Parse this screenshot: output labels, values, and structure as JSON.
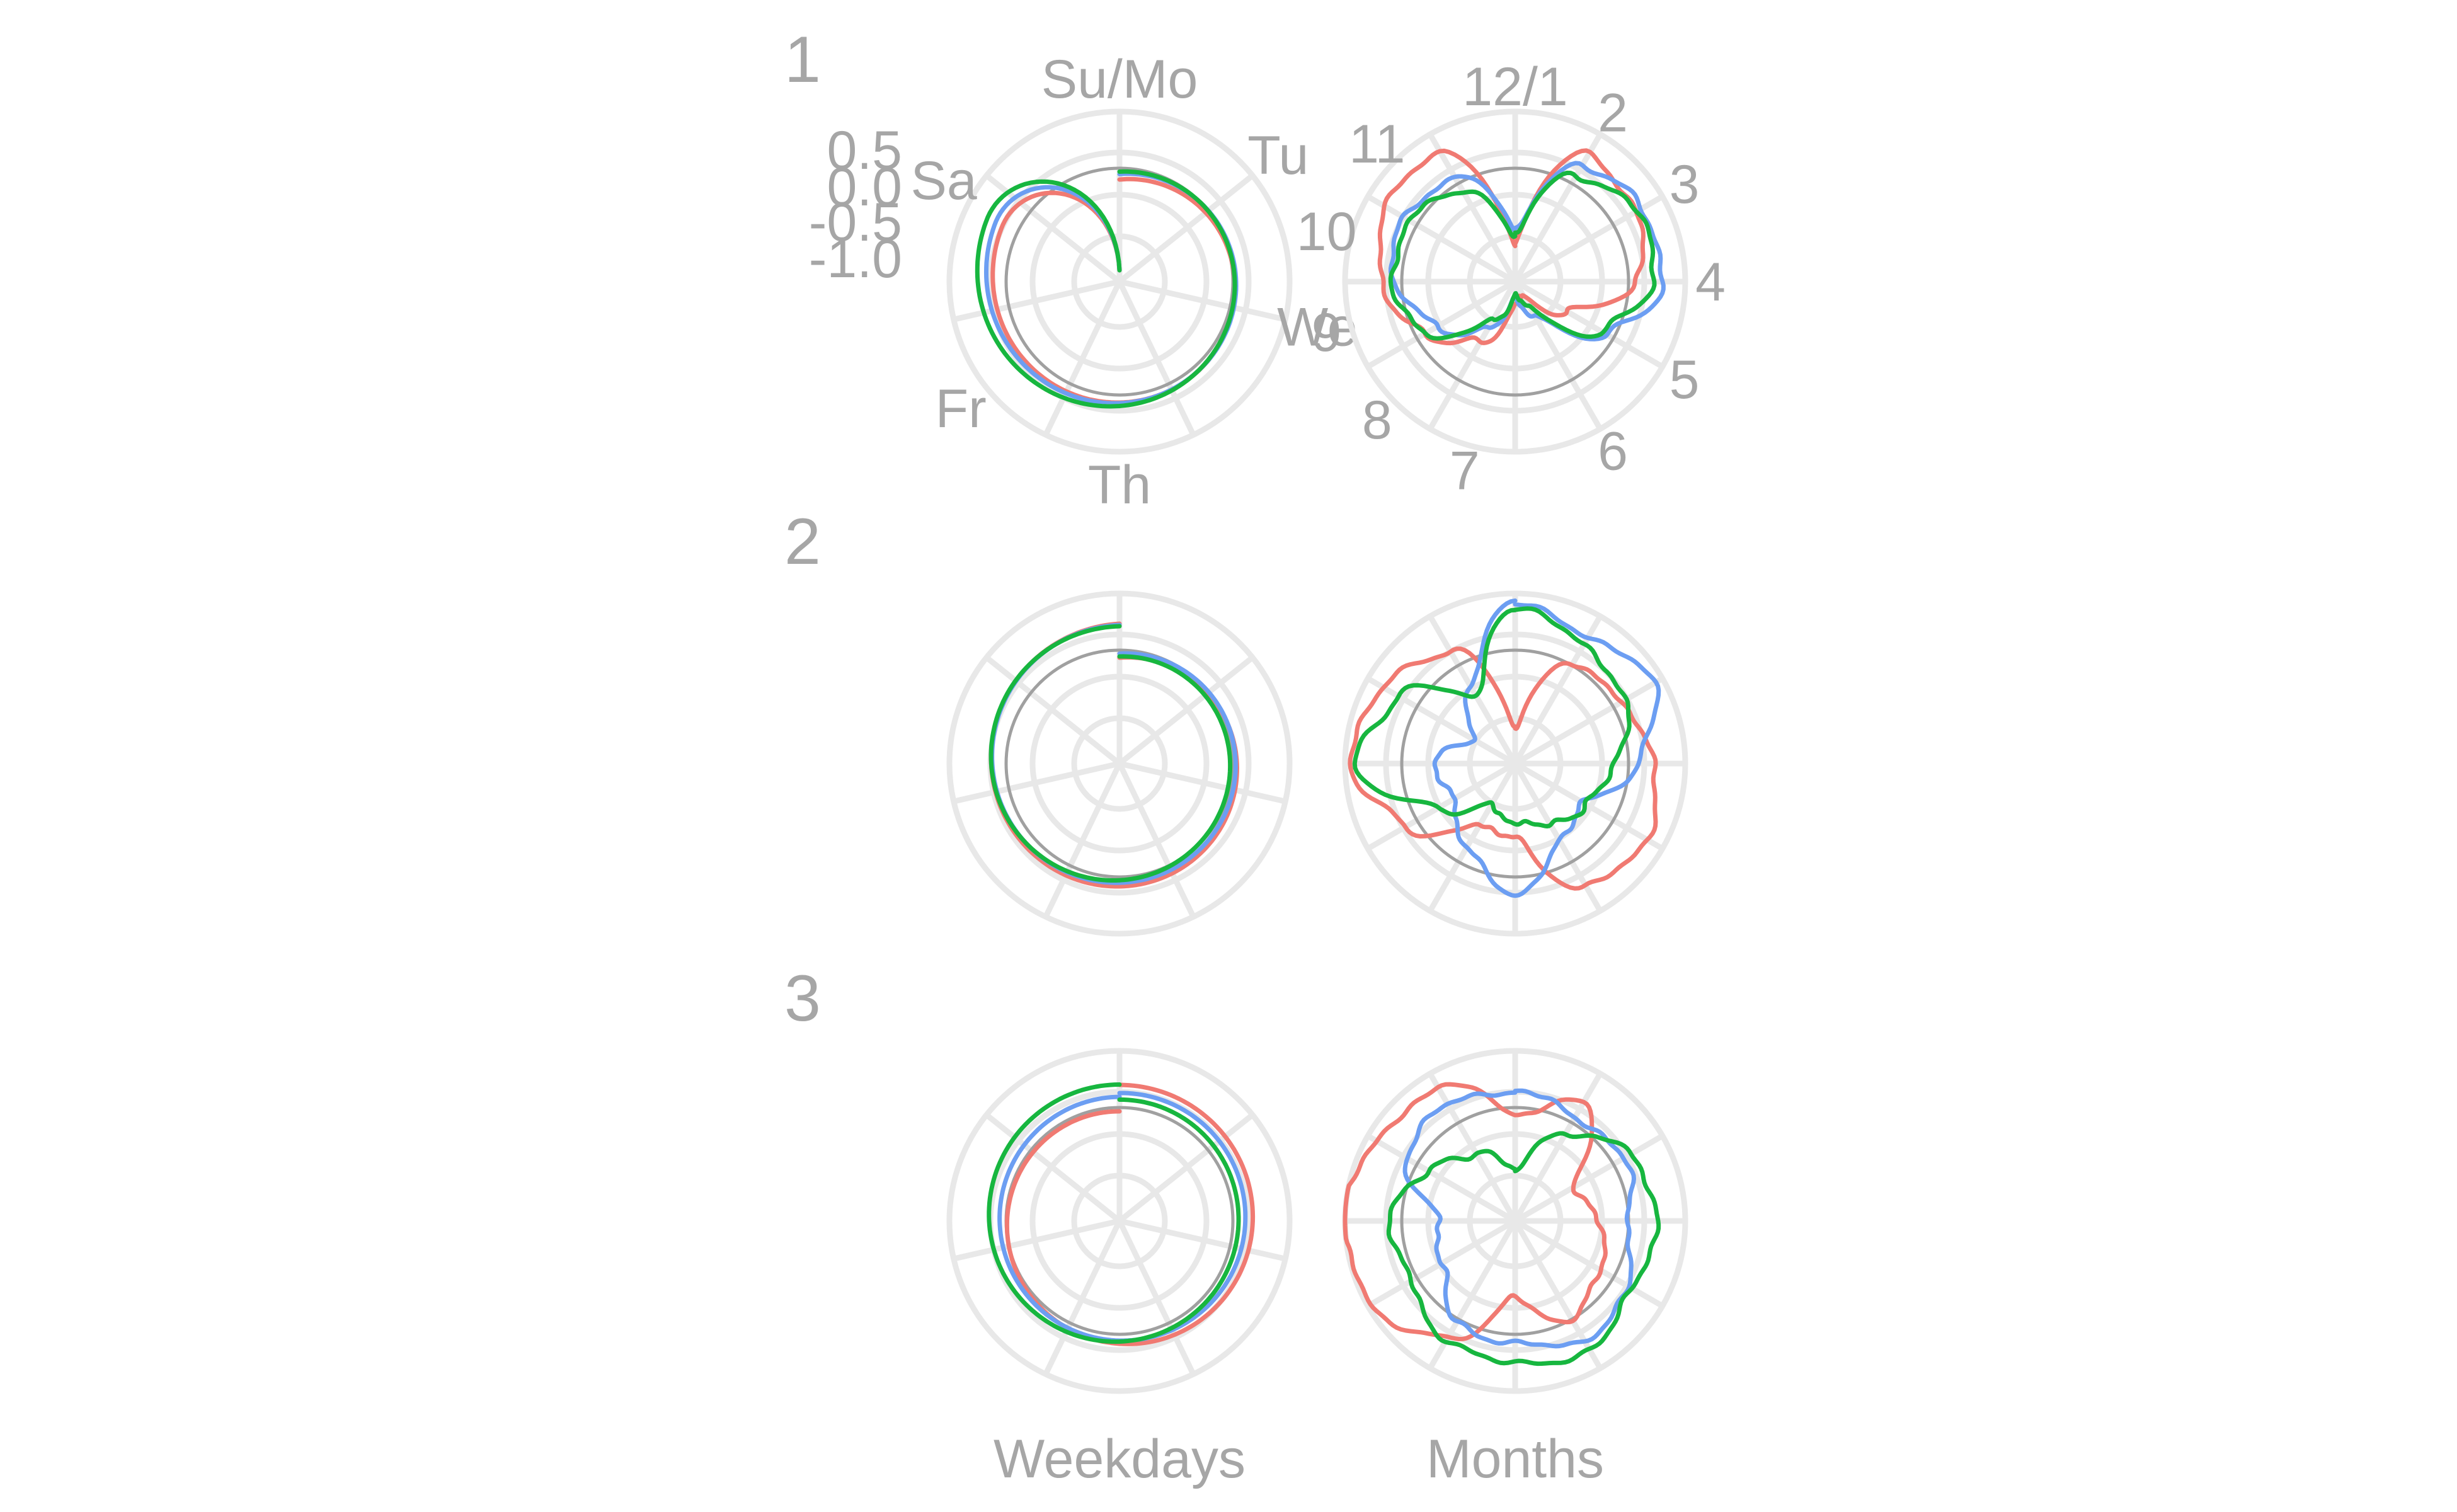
{
  "chart_data": {
    "type": "line",
    "coordinate_system": "polar",
    "grid": true,
    "legend": "none",
    "radial_axis": {
      "ticks": [
        "0.5",
        "0.0",
        "-0.5",
        "-1.0"
      ],
      "range": [
        -1.5,
        0.75
      ],
      "reference_circle": 0.0
    },
    "colors": [
      "#f07a72",
      "#6c9ef2",
      "#17b63f"
    ],
    "rows": [
      {
        "label": "1"
      },
      {
        "label": "2"
      },
      {
        "label": "3"
      }
    ],
    "columns": [
      {
        "label": "Weekdays",
        "period": 7,
        "spokes": 7,
        "tick_labels": [
          {
            "label": "Su/Mo",
            "angle": 0
          },
          {
            "label": "Tu",
            "angle": 51.43
          },
          {
            "label": "We",
            "angle": 102.86
          },
          {
            "label": "Th",
            "angle": 180
          },
          {
            "label": "Fr",
            "angle": 231.43
          },
          {
            "label": "Sa",
            "angle": 300
          }
        ]
      },
      {
        "label": "Months",
        "period": 12,
        "spokes": 12,
        "tick_labels": [
          {
            "label": "12/1",
            "angle": 0
          },
          {
            "label": "2",
            "angle": 30
          },
          {
            "label": "3",
            "angle": 60
          },
          {
            "label": "4",
            "angle": 90
          },
          {
            "label": "5",
            "angle": 120
          },
          {
            "label": "6",
            "angle": 150
          },
          {
            "label": "7",
            "angle": 195
          },
          {
            "label": "8",
            "angle": 225
          },
          {
            "label": "9",
            "angle": 255
          },
          {
            "label": "10",
            "angle": 285
          },
          {
            "label": "11",
            "angle": 315
          }
        ]
      }
    ],
    "series_profiles": {
      "weekday_spiral": {
        "note_units": "radial value in axis units, sampled along one full turn",
        "row1": [
          {
            "start": -0.15,
            "end": 0.35,
            "amp": 0.05
          },
          {
            "start": -0.12,
            "end": 0.42,
            "amp": 0.05
          },
          {
            "start": -0.1,
            "end": 0.5,
            "amp": 0.06
          }
        ],
        "row2": [
          {
            "start": -0.1,
            "end": 0.35,
            "amp": 0.04
          },
          {
            "start": -0.08,
            "end": 0.3,
            "amp": 0.04
          },
          {
            "start": -0.12,
            "end": 0.28,
            "amp": 0.04
          }
        ],
        "row3": [
          {
            "start": 0.3,
            "end": -0.05,
            "amp": 0.05
          },
          {
            "start": 0.15,
            "end": 0.1,
            "amp": 0.05
          },
          {
            "start": 0.05,
            "end": 0.25,
            "amp": 0.06
          }
        ]
      },
      "monthly": {
        "row1": [
          {
            "values": [
              -1.0,
              0.45,
              0.35,
              0.1,
              -0.7,
              -1.3,
              -1.2,
              -0.6,
              -0.1,
              0.25,
              0.5,
              0.45
            ]
          },
          {
            "values": [
              -0.8,
              0.25,
              0.45,
              0.45,
              -0.1,
              -1.0,
              -1.3,
              -0.8,
              -0.3,
              0.1,
              0.2,
              0.1
            ]
          },
          {
            "values": [
              -0.9,
              0.15,
              0.35,
              0.35,
              -0.2,
              -1.1,
              -1.35,
              -0.9,
              -0.15,
              0.15,
              0.1,
              -0.1
            ]
          }
        ],
        "row2": [
          {
            "values": [
              -1.0,
              0.0,
              0.15,
              0.3,
              0.55,
              0.35,
              -0.5,
              -0.6,
              0.2,
              0.65,
              0.55,
              0.2
            ]
          },
          {
            "values": [
              0.6,
              0.45,
              0.6,
              0.15,
              -0.5,
              -0.3,
              0.2,
              -0.2,
              -0.6,
              -0.4,
              -0.9,
              -0.3
            ]
          },
          {
            "values": [
              0.55,
              0.3,
              0.2,
              -0.2,
              -0.4,
              -0.6,
              -0.7,
              -0.9,
              -0.3,
              0.6,
              0.3,
              -0.5
            ]
          }
        ],
        "row3": [
          {
            "values": [
              -0.1,
              0.3,
              -0.6,
              -0.4,
              -0.2,
              0.0,
              -0.5,
              0.3,
              0.7,
              0.8,
              0.6,
              0.55
            ]
          },
          {
            "values": [
              0.2,
              0.1,
              0.15,
              0.0,
              0.2,
              0.35,
              0.1,
              0.05,
              -0.4,
              -0.5,
              0.15,
              0.3
            ]
          },
          {
            "values": [
              -0.8,
              -0.2,
              0.3,
              0.35,
              0.3,
              0.45,
              0.4,
              0.3,
              0.1,
              0.15,
              -0.15,
              -0.5
            ]
          }
        ]
      }
    }
  }
}
